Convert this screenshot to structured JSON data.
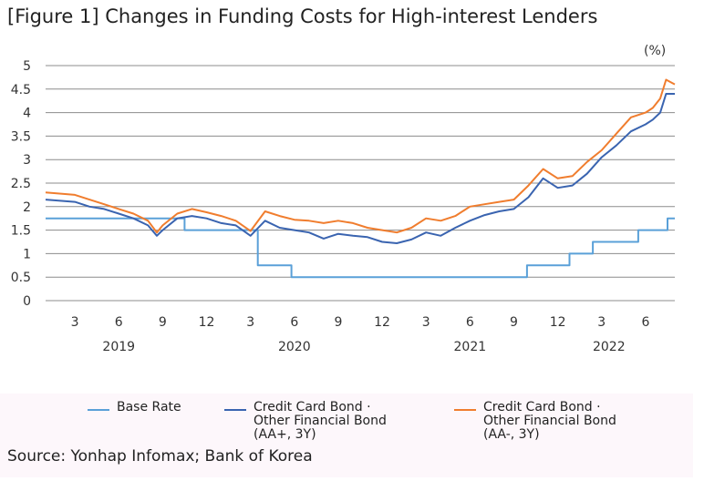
{
  "title": "[Figure 1] Changes in Funding Costs for High-interest Lenders",
  "source": "Source: Yonhap Infomax; Bank of Korea",
  "chart_data": {
    "type": "line",
    "unit_label": "(%)",
    "ylim": [
      0,
      5
    ],
    "yticks": [
      "0",
      "0.5",
      "1",
      "1.5",
      "2",
      "2.5",
      "3",
      "3.5",
      "4",
      "4.5",
      "5"
    ],
    "x_month_ticks": [
      "3",
      "6",
      "9",
      "12",
      "3",
      "6",
      "9",
      "12",
      "3",
      "6",
      "9",
      "12",
      "3",
      "6"
    ],
    "x_month_positions": [
      2,
      5,
      8,
      11,
      14,
      17,
      20,
      23,
      26,
      29,
      32,
      35,
      38,
      41
    ],
    "x_years": [
      {
        "label": "2019",
        "at": 5
      },
      {
        "label": "2020",
        "at": 17
      },
      {
        "label": "2021",
        "at": 29
      },
      {
        "label": "2022",
        "at": 38.5
      }
    ],
    "x_range": [
      0,
      43
    ],
    "grid": true,
    "colors": {
      "base": "#5aa0d8",
      "aaplus": "#3a64b0",
      "aaminus": "#f07d2e",
      "grid": "#8c8c8c"
    },
    "series": [
      {
        "name": "Base Rate",
        "key": "base",
        "legend": "Base Rate",
        "x": [
          0,
          9.5,
          9.5,
          14.5,
          14.5,
          16.8,
          16.8,
          32.9,
          32.9,
          35.8,
          35.8,
          37.4,
          37.4,
          40.5,
          40.5,
          42.5,
          42.5,
          43
        ],
        "values": [
          1.75,
          1.75,
          1.5,
          1.5,
          0.75,
          0.75,
          0.5,
          0.5,
          0.75,
          0.75,
          1.0,
          1.0,
          1.25,
          1.25,
          1.5,
          1.5,
          1.75,
          1.75
        ]
      },
      {
        "name": "Credit Card Bond · Other Financial Bond (AA+, 3Y)",
        "key": "aaplus",
        "legend": "Credit Card Bond ·\nOther Financial Bond\n(AA+, 3Y)",
        "x": [
          0,
          2,
          3,
          4,
          5,
          6,
          7,
          7.6,
          8,
          9,
          10,
          11,
          12,
          13,
          14,
          15,
          16,
          17,
          18,
          19,
          20,
          21,
          22,
          23,
          24,
          25,
          26,
          27,
          28,
          29,
          30,
          31,
          32,
          33,
          34,
          35,
          36,
          37,
          38,
          39,
          40,
          41,
          41.5,
          42,
          42.4,
          43
        ],
        "values": [
          2.15,
          2.1,
          2.0,
          1.95,
          1.85,
          1.75,
          1.6,
          1.38,
          1.5,
          1.75,
          1.8,
          1.75,
          1.65,
          1.6,
          1.38,
          1.7,
          1.55,
          1.5,
          1.45,
          1.32,
          1.42,
          1.38,
          1.35,
          1.25,
          1.22,
          1.3,
          1.45,
          1.38,
          1.55,
          1.7,
          1.82,
          1.9,
          1.95,
          2.2,
          2.6,
          2.4,
          2.45,
          2.7,
          3.05,
          3.3,
          3.6,
          3.75,
          3.85,
          4.0,
          4.4,
          4.4
        ]
      },
      {
        "name": "Credit Card Bond · Other Financial Bond (AA-, 3Y)",
        "key": "aaminus",
        "legend": "Credit Card Bond ·\nOther Financial Bond\n(AA-, 3Y)",
        "x": [
          0,
          2,
          3,
          4,
          5,
          6,
          7,
          7.6,
          8,
          9,
          10,
          11,
          12,
          13,
          14,
          15,
          16,
          17,
          18,
          19,
          20,
          21,
          22,
          23,
          24,
          25,
          26,
          27,
          28,
          29,
          30,
          31,
          32,
          33,
          34,
          35,
          36,
          37,
          38,
          39,
          40,
          41,
          41.5,
          42,
          42.4,
          43
        ],
        "values": [
          2.3,
          2.25,
          2.15,
          2.05,
          1.95,
          1.85,
          1.7,
          1.45,
          1.6,
          1.85,
          1.95,
          1.88,
          1.8,
          1.7,
          1.48,
          1.9,
          1.8,
          1.72,
          1.7,
          1.65,
          1.7,
          1.65,
          1.55,
          1.5,
          1.45,
          1.55,
          1.75,
          1.7,
          1.8,
          2.0,
          2.05,
          2.1,
          2.15,
          2.45,
          2.8,
          2.6,
          2.65,
          2.95,
          3.2,
          3.55,
          3.9,
          4.0,
          4.1,
          4.3,
          4.7,
          4.6
        ]
      }
    ]
  }
}
